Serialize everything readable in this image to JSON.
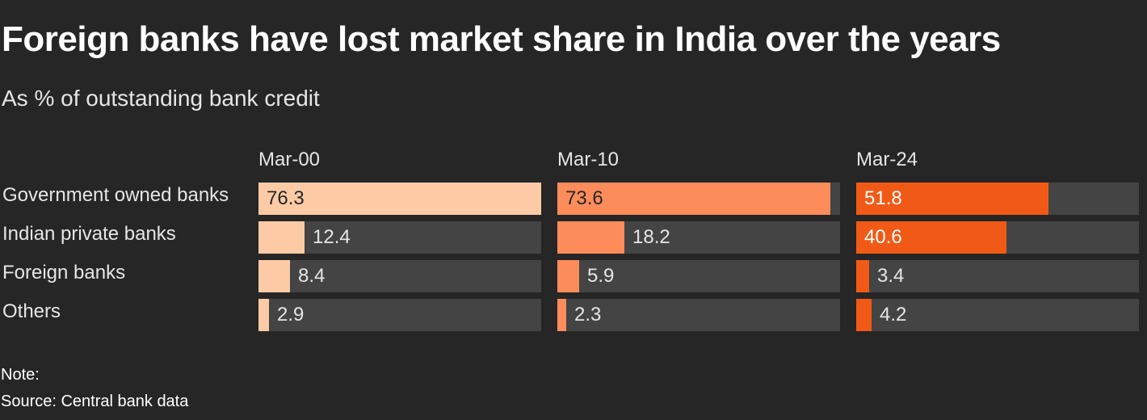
{
  "chart_data": {
    "type": "bar",
    "title": "Foreign banks have lost market share in India over the years",
    "subtitle": "As % of outstanding bank credit",
    "categories": [
      "Government owned banks",
      "Indian private banks",
      "Foreign banks",
      "Others"
    ],
    "series": [
      {
        "name": "Mar-00",
        "values": [
          76.3,
          12.4,
          8.4,
          2.9
        ],
        "color": "#fccba6"
      },
      {
        "name": "Mar-10",
        "values": [
          73.6,
          18.2,
          5.9,
          2.3
        ],
        "color": "#fd8c5b"
      },
      {
        "name": "Mar-24",
        "values": [
          51.8,
          40.6,
          3.4,
          4.2
        ],
        "color": "#f15a16"
      }
    ],
    "xlim": [
      0,
      76.3
    ],
    "track_color": "#444444",
    "grid": false,
    "note": "Note:",
    "source": "Source: Central bank data"
  }
}
